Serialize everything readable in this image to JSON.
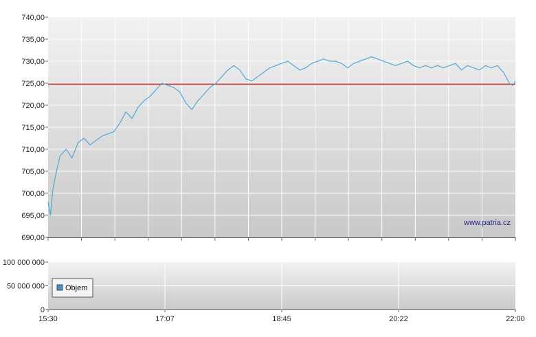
{
  "chart_data": [
    {
      "type": "line",
      "title": "",
      "xlabel": "",
      "ylabel": "",
      "ylim": [
        690,
        740
      ],
      "y_ticks": [
        "740,00",
        "735,00",
        "730,00",
        "725,00",
        "720,00",
        "715,00",
        "710,00",
        "705,00",
        "700,00",
        "695,00",
        "690,00"
      ],
      "reference_line": {
        "value": 724.8,
        "color": "#cc0000"
      },
      "series": [
        {
          "color": "#4ea8d8",
          "x": [
            "15:30",
            "15:32",
            "15:34",
            "15:37",
            "15:40",
            "15:45",
            "15:50",
            "15:55",
            "16:00",
            "16:05",
            "16:10",
            "16:15",
            "16:20",
            "16:25",
            "16:30",
            "16:35",
            "16:40",
            "16:45",
            "16:50",
            "16:55",
            "17:00",
            "17:05",
            "17:10",
            "17:15",
            "17:20",
            "17:25",
            "17:30",
            "17:35",
            "17:40",
            "17:45",
            "17:50",
            "17:55",
            "18:00",
            "18:05",
            "18:10",
            "18:15",
            "18:20",
            "18:25",
            "18:30",
            "18:35",
            "18:40",
            "18:45",
            "18:50",
            "18:55",
            "19:00",
            "19:05",
            "19:10",
            "19:15",
            "19:20",
            "19:25",
            "19:30",
            "19:35",
            "19:40",
            "19:45",
            "19:50",
            "19:55",
            "20:00",
            "20:05",
            "20:10",
            "20:15",
            "20:20",
            "20:25",
            "20:30",
            "20:35",
            "20:40",
            "20:45",
            "20:50",
            "20:55",
            "21:00",
            "21:05",
            "21:10",
            "21:15",
            "21:20",
            "21:25",
            "21:30",
            "21:35",
            "21:40",
            "21:45",
            "21:50",
            "21:55",
            "21:58",
            "22:00"
          ],
          "values": [
            698.0,
            695.0,
            701.0,
            705.0,
            708.5,
            710.0,
            708.0,
            711.5,
            712.5,
            711.0,
            712.0,
            713.0,
            713.5,
            714.0,
            716.0,
            718.5,
            717.0,
            719.5,
            721.0,
            722.0,
            723.5,
            725.0,
            724.5,
            724.0,
            723.0,
            720.5,
            719.0,
            721.0,
            722.5,
            724.0,
            725.0,
            726.5,
            728.0,
            729.0,
            728.0,
            726.0,
            725.5,
            726.5,
            727.5,
            728.5,
            729.0,
            729.5,
            730.0,
            729.0,
            728.0,
            728.5,
            729.5,
            730.0,
            730.5,
            730.0,
            730.0,
            729.5,
            728.5,
            729.5,
            730.0,
            730.5,
            731.0,
            730.5,
            730.0,
            729.5,
            729.0,
            729.5,
            730.0,
            729.0,
            728.5,
            729.0,
            728.5,
            729.0,
            728.5,
            729.0,
            729.5,
            728.0,
            729.0,
            728.5,
            728.0,
            729.0,
            728.5,
            729.0,
            727.5,
            725.0,
            724.5,
            725.5
          ]
        }
      ]
    },
    {
      "type": "bar",
      "title": "",
      "xlabel": "",
      "ylabel": "",
      "ylim": [
        0,
        100000000
      ],
      "y_ticks": [
        "100 000 000",
        "50 000 000",
        "0"
      ],
      "x_ticks": [
        "15:30",
        "17:07",
        "18:45",
        "20:22",
        "22:00"
      ],
      "legend": "Objem",
      "legend_color": "#4a8fc8",
      "series": [
        {
          "name": "Objem",
          "values": []
        }
      ]
    }
  ],
  "watermark": "www.patria.cz"
}
